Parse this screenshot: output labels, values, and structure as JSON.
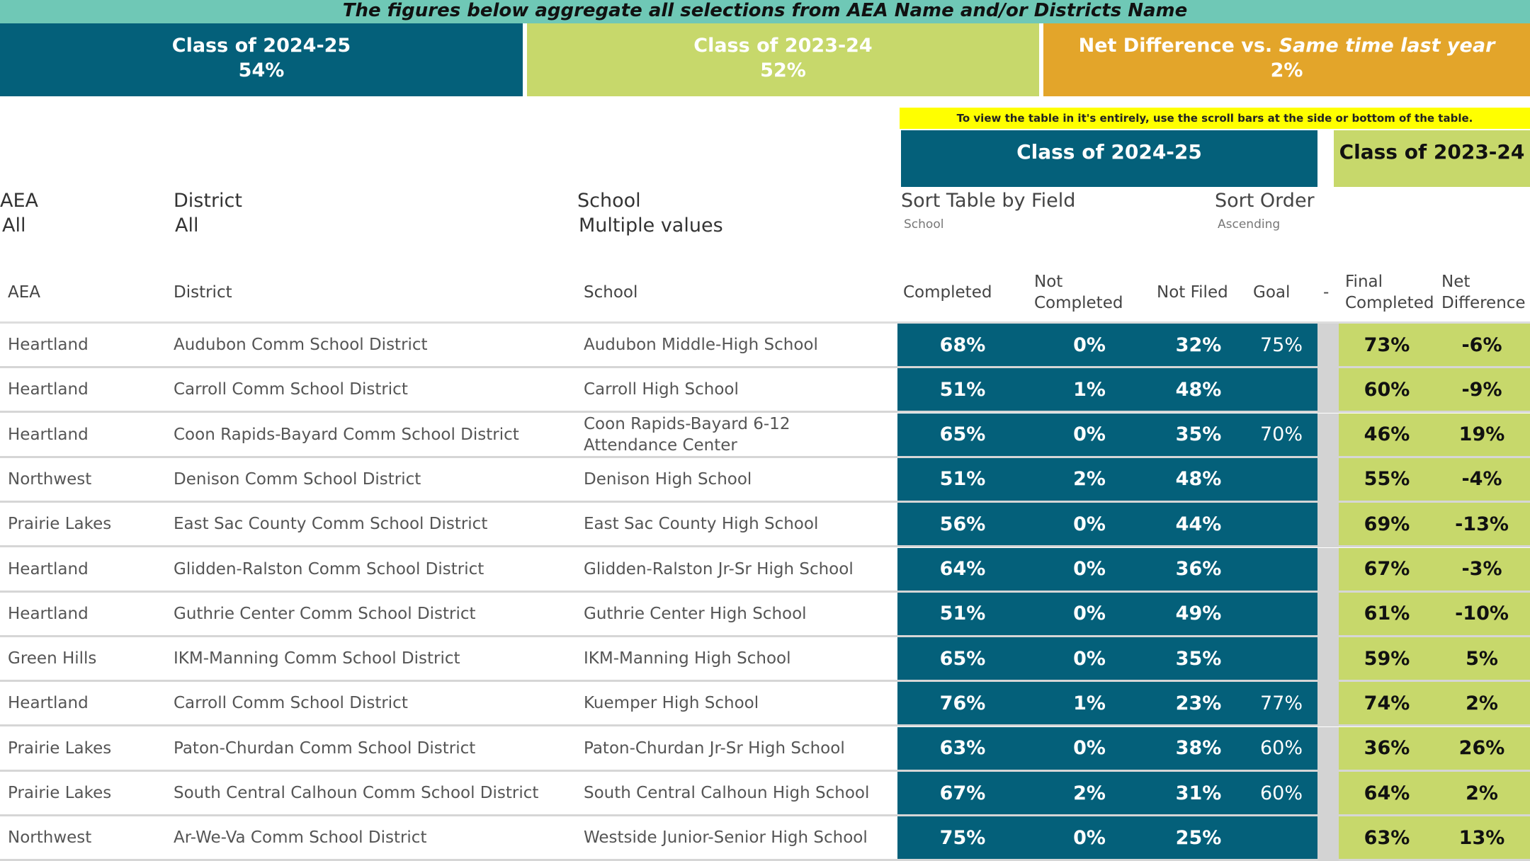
{
  "banner": "The figures below aggregate all selections from AEA Name and/or Districts Name",
  "kpis": {
    "current": {
      "label": "Class of 2024-25",
      "value": "54%"
    },
    "previous": {
      "label": "Class of 2023-24",
      "value": "52%"
    },
    "net": {
      "label_prefix": "Net Difference vs. ",
      "label_em": "Same time last year",
      "value": "2%"
    }
  },
  "note": "To view the table in it's entirely, use the scroll bars at the side or bottom of the table.",
  "groups": {
    "current": "Class of 2024-25",
    "previous": "Class of 2023-24"
  },
  "filters": {
    "aea": {
      "label": "AEA",
      "value": "All"
    },
    "district": {
      "label": "District",
      "value": "All"
    },
    "school": {
      "label": "School",
      "value": "Multiple values"
    },
    "sort_field": {
      "label": "Sort Table by Field",
      "value": "School"
    },
    "sort_order": {
      "label": "Sort Order",
      "value": "Ascending"
    }
  },
  "columns": {
    "aea": "AEA",
    "district": "District",
    "school": "School",
    "completed": "Completed",
    "not_completed": "Not Completed",
    "not_filed": "Not Filed",
    "goal": "Goal",
    "dash": "-",
    "final_completed": "Final Completed",
    "net_difference": "Net Difference"
  },
  "colors": {
    "current": "#04607a",
    "previous": "#c7d86b",
    "net": "#e3a52a",
    "banner": "#6fc8b6",
    "note": "#ffff00"
  },
  "rows": [
    {
      "aea": "Heartland",
      "district": "Audubon Comm School District",
      "school": "Audubon Middle-High School",
      "completed": "68%",
      "not_completed": "0%",
      "not_filed": "32%",
      "goal": "75%",
      "final": "73%",
      "net": "-6%"
    },
    {
      "aea": "Heartland",
      "district": "Carroll Comm School District",
      "school": "Carroll High School",
      "completed": "51%",
      "not_completed": "1%",
      "not_filed": "48%",
      "goal": "",
      "final": "60%",
      "net": "-9%"
    },
    {
      "aea": "Heartland",
      "district": "Coon Rapids-Bayard Comm School District",
      "school": "Coon Rapids-Bayard 6-12 Attendance Center",
      "completed": "65%",
      "not_completed": "0%",
      "not_filed": "35%",
      "goal": "70%",
      "final": "46%",
      "net": "19%"
    },
    {
      "aea": "Northwest",
      "district": "Denison Comm School District",
      "school": "Denison High School",
      "completed": "51%",
      "not_completed": "2%",
      "not_filed": "48%",
      "goal": "",
      "final": "55%",
      "net": "-4%"
    },
    {
      "aea": "Prairie Lakes",
      "district": "East Sac County Comm School District",
      "school": "East Sac County High School",
      "completed": "56%",
      "not_completed": "0%",
      "not_filed": "44%",
      "goal": "",
      "final": "69%",
      "net": "-13%"
    },
    {
      "aea": "Heartland",
      "district": "Glidden-Ralston Comm School District",
      "school": "Glidden-Ralston Jr-Sr High School",
      "completed": "64%",
      "not_completed": "0%",
      "not_filed": "36%",
      "goal": "",
      "final": "67%",
      "net": "-3%"
    },
    {
      "aea": "Heartland",
      "district": "Guthrie Center Comm School District",
      "school": "Guthrie Center High School",
      "completed": "51%",
      "not_completed": "0%",
      "not_filed": "49%",
      "goal": "",
      "final": "61%",
      "net": "-10%"
    },
    {
      "aea": "Green Hills",
      "district": "IKM-Manning Comm School District",
      "school": "IKM-Manning High School",
      "completed": "65%",
      "not_completed": "0%",
      "not_filed": "35%",
      "goal": "",
      "final": "59%",
      "net": "5%"
    },
    {
      "aea": "Heartland",
      "district": "Carroll Comm School District",
      "school": "Kuemper High School",
      "completed": "76%",
      "not_completed": "1%",
      "not_filed": "23%",
      "goal": "77%",
      "final": "74%",
      "net": "2%"
    },
    {
      "aea": "Prairie Lakes",
      "district": "Paton-Churdan Comm School District",
      "school": "Paton-Churdan Jr-Sr High School",
      "completed": "63%",
      "not_completed": "0%",
      "not_filed": "38%",
      "goal": "60%",
      "final": "36%",
      "net": "26%"
    },
    {
      "aea": "Prairie Lakes",
      "district": "South Central Calhoun Comm School District",
      "school": "South Central Calhoun High School",
      "completed": "67%",
      "not_completed": "2%",
      "not_filed": "31%",
      "goal": "60%",
      "final": "64%",
      "net": "2%"
    },
    {
      "aea": "Northwest",
      "district": "Ar-We-Va Comm School District",
      "school": "Westside Junior-Senior High School",
      "completed": "75%",
      "not_completed": "0%",
      "not_filed": "25%",
      "goal": "",
      "final": "63%",
      "net": "13%"
    }
  ]
}
